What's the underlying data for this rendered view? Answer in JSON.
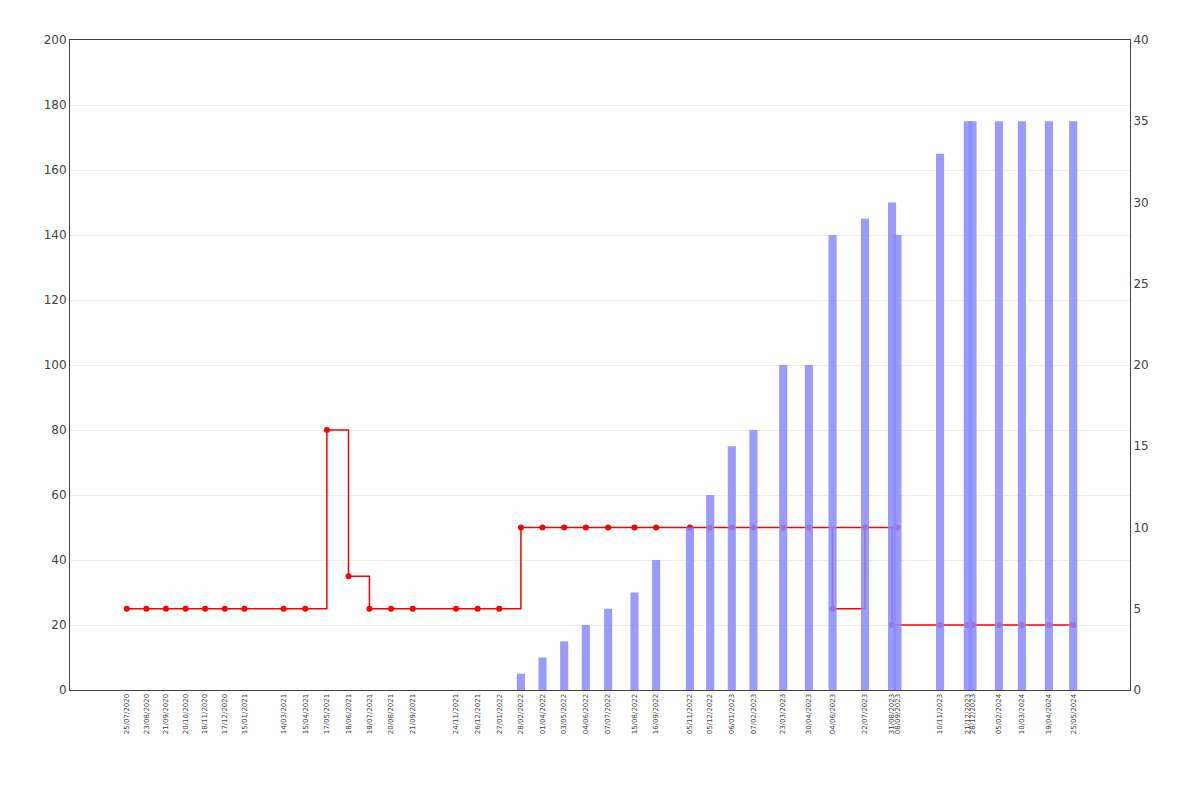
{
  "chart_data": {
    "type": "bar",
    "x": [
      "25/07/2020",
      "23/08/2020",
      "21/09/2020",
      "20/10/2020",
      "18/11/2020",
      "17/12/2020",
      "15/01/2021",
      "14/03/2021",
      "15/04/2021",
      "17/05/2021",
      "18/06/2021",
      "19/07/2021",
      "20/08/2021",
      "21/09/2021",
      "24/11/2021",
      "26/12/2021",
      "27/01/2022",
      "28/02/2022",
      "01/04/2022",
      "03/05/2022",
      "04/06/2022",
      "07/07/2022",
      "15/08/2022",
      "16/09/2022",
      "05/11/2022",
      "05/12/2022",
      "06/01/2023",
      "07/02/2023",
      "23/03/2023",
      "30/04/2023",
      "08/09/2023",
      "04/06/2023",
      "22/07/2023",
      "31/08/2023",
      "10/11/2023",
      "21/12/2023",
      "28/12/2023",
      "05/02/2024",
      "10/03/2024",
      "19/04/2024",
      "25/05/2024"
    ],
    "series": [
      {
        "type": "bar",
        "axis": "y2",
        "color": "#8888ff",
        "values": [
          0,
          0,
          0,
          0,
          0,
          0,
          0,
          0,
          0,
          0,
          0,
          0,
          0,
          0,
          0,
          0,
          0,
          1,
          2,
          3,
          4,
          5,
          6,
          8,
          10,
          12,
          15,
          16,
          20,
          20,
          28,
          28,
          29,
          30,
          33,
          35,
          35,
          35,
          35,
          35,
          35
        ]
      },
      {
        "type": "step",
        "color": "#ff0000",
        "marker": "circle",
        "values": [
          25,
          25,
          25,
          25,
          25,
          25,
          25,
          25,
          25,
          80,
          35,
          25,
          25,
          25,
          25,
          25,
          25,
          50,
          50,
          50,
          50,
          50,
          50,
          50,
          50,
          50,
          50,
          50,
          50,
          50,
          50,
          25,
          50,
          20,
          20,
          20,
          20,
          20,
          20,
          20,
          20
        ]
      }
    ],
    "ylim": [
      0,
      200
    ],
    "yticks": [
      0,
      20,
      40,
      60,
      80,
      100,
      120,
      140,
      160,
      180,
      200
    ],
    "y2lim": [
      0,
      40
    ],
    "y2ticks": [
      0,
      5,
      10,
      15,
      20,
      25,
      30,
      35,
      40
    ],
    "grid": true
  }
}
